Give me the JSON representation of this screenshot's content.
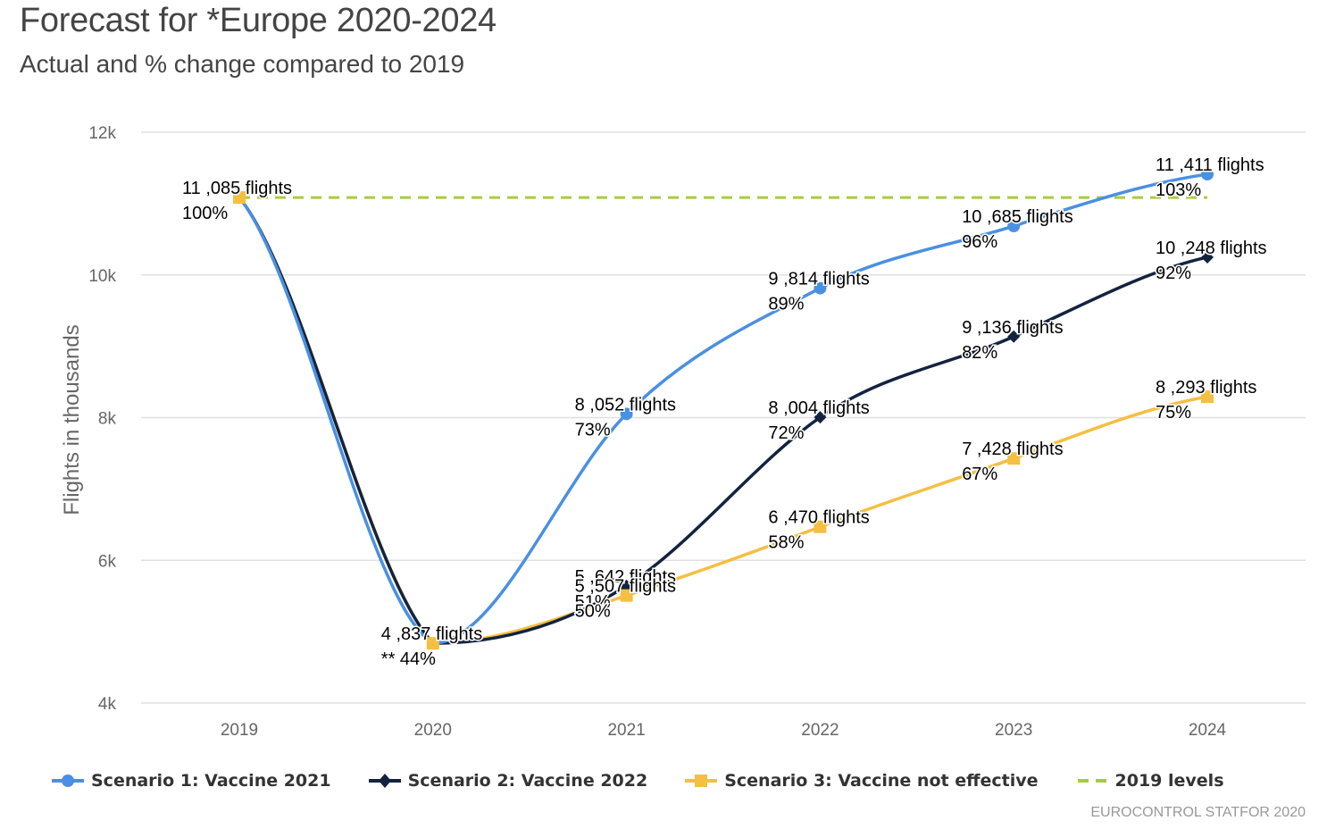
{
  "header": {
    "title": "Forecast for *Europe 2020-2024",
    "subtitle": "Actual and % change compared to 2019"
  },
  "credit": "EUROCONTROL STATFOR 2020",
  "chart_data": {
    "type": "line",
    "title": "Forecast for *Europe 2020-2024",
    "subtitle": "Actual and % change compared to 2019",
    "xlabel": "",
    "ylabel": "Flights in thousands",
    "categories": [
      "2019",
      "2020",
      "2021",
      "2022",
      "2023",
      "2024"
    ],
    "ylim": [
      4000,
      12000
    ],
    "yticks": [
      4000,
      6000,
      8000,
      10000,
      12000
    ],
    "ytick_labels": [
      "4k",
      "6k",
      "8k",
      "10k",
      "12k"
    ],
    "grid": true,
    "legend_position": "bottom-left",
    "series": [
      {
        "name": "Scenario 1: Vaccine 2021",
        "color": "#4a90e2",
        "marker": "circle",
        "values": [
          11085,
          4837,
          8052,
          9814,
          10685,
          11411
        ],
        "labels": [
          "11 ,085 flights",
          "4 ,837 flights",
          "8 ,052 flights",
          "9 ,814 flights",
          "10 ,685 flights",
          "11 ,411 flights"
        ],
        "pct": [
          "100%",
          "** 44%",
          "73%",
          "89%",
          "96%",
          "103%"
        ]
      },
      {
        "name": "Scenario 2: Vaccine 2022",
        "color": "#13233f",
        "marker": "diamond",
        "values": [
          11085,
          4837,
          5642,
          8004,
          9136,
          10248
        ],
        "labels": [
          "11 ,085 flights",
          "4 ,837 flights",
          "5 ,642 flights",
          "8 ,004 flights",
          "9 ,136 flights",
          "10 ,248 flights"
        ],
        "pct": [
          "100%",
          "** 44%",
          "51%",
          "72%",
          "82%",
          "92%"
        ]
      },
      {
        "name": "Scenario 3: Vaccine not effective",
        "color": "#f5bf42",
        "marker": "square",
        "values": [
          11085,
          4837,
          5507,
          6470,
          7428,
          8293
        ],
        "labels": [
          "11 ,085 flights",
          "4 ,837 flights",
          "5 ,507 flights",
          "6 ,470 flights",
          "7 ,428 flights",
          "8 ,293 flights"
        ],
        "pct": [
          "100%",
          "** 44%",
          "50%",
          "58%",
          "67%",
          "75%"
        ]
      },
      {
        "name": "2019 levels",
        "color": "#a8cc3e",
        "marker": "none",
        "dashed": true,
        "values": [
          11085,
          11085,
          11085,
          11085,
          11085,
          11085
        ]
      }
    ]
  }
}
